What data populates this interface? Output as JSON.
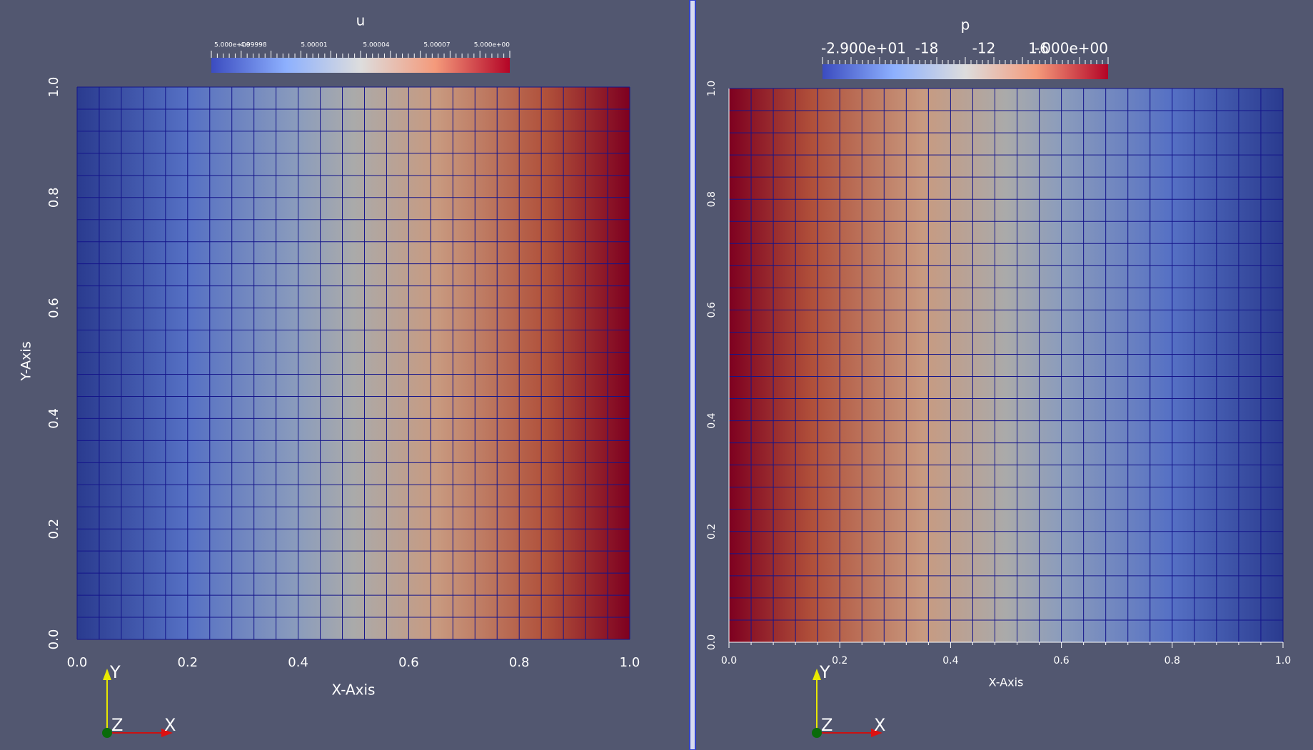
{
  "panels": [
    {
      "title": "u",
      "colorbar_labels": [
        "5.000e+00",
        "4.99998",
        "5.00001",
        "5.00004",
        "5.00007",
        "5.000e+00"
      ],
      "y_ticks": [
        "0.0",
        "0.2",
        "0.4",
        "0.6",
        "0.8",
        "1.0"
      ],
      "x_ticks": [
        "0.0",
        "0.2",
        "0.4",
        "0.6",
        "0.8",
        "1.0"
      ],
      "x_axis_title": "X-Axis",
      "y_axis_title": "Y-Axis",
      "orientation": [
        "Y",
        "Z",
        "X"
      ]
    },
    {
      "title": "p",
      "colorbar_labels": [
        "-2.900e+01",
        "-18",
        "-12",
        "-6",
        "1.000e+00"
      ],
      "y_ticks": [
        "0.0",
        "0.2",
        "0.4",
        "0.6",
        "0.8",
        "1.0"
      ],
      "x_ticks": [
        "0.0",
        "0.2",
        "0.4",
        "0.6",
        "0.8",
        "1.0"
      ],
      "x_axis_title": "X-Axis",
      "orientation": [
        "Y",
        "Z",
        "X"
      ]
    }
  ]
}
